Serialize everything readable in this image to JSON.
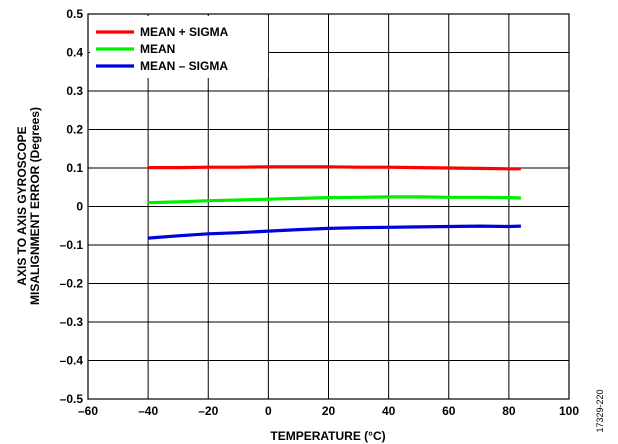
{
  "figure_id": "17329-220",
  "chart_data": {
    "type": "line",
    "xlabel": "TEMPERATURE (°C)",
    "ylabel_lines": [
      "AXIS TO AXIS GYROSCOPE",
      "MISALIGNMENT ERROR (Degrees)"
    ],
    "xlim": [
      -60,
      100
    ],
    "ylim": [
      -0.5,
      0.5
    ],
    "x_ticks": [
      -60,
      -40,
      -20,
      0,
      20,
      40,
      60,
      80,
      100
    ],
    "x_tick_labels": [
      "–60",
      "–40",
      "–20",
      "0",
      "20",
      "40",
      "60",
      "80",
      "100"
    ],
    "y_ticks": [
      -0.5,
      -0.4,
      -0.3,
      -0.2,
      -0.1,
      0,
      0.1,
      0.2,
      0.3,
      0.4,
      0.5
    ],
    "y_tick_labels": [
      "–0.5",
      "–0.4",
      "–0.3",
      "–0.2",
      "–0.1",
      "0",
      "0.1",
      "0.2",
      "0.3",
      "0.4",
      "0.5"
    ],
    "grid": true,
    "legend_position": "top-left",
    "series": [
      {
        "name": "MEAN + SIGMA",
        "color": "#ff0000",
        "x": [
          -40,
          -30,
          -20,
          -10,
          0,
          10,
          20,
          30,
          40,
          50,
          60,
          70,
          80,
          84
        ],
        "y": [
          0.101,
          0.101,
          0.102,
          0.102,
          0.103,
          0.103,
          0.103,
          0.102,
          0.102,
          0.101,
          0.1,
          0.099,
          0.098,
          0.098
        ]
      },
      {
        "name": "MEAN",
        "color": "#00ee00",
        "x": [
          -40,
          -30,
          -20,
          -10,
          0,
          10,
          20,
          30,
          40,
          50,
          60,
          70,
          80,
          84
        ],
        "y": [
          0.01,
          0.012,
          0.015,
          0.017,
          0.019,
          0.021,
          0.023,
          0.024,
          0.025,
          0.025,
          0.024,
          0.024,
          0.023,
          0.022
        ]
      },
      {
        "name": "MEAN – SIGMA",
        "color": "#0000e0",
        "x": [
          -40,
          -30,
          -20,
          -10,
          0,
          10,
          20,
          30,
          40,
          50,
          60,
          70,
          80,
          84
        ],
        "y": [
          -0.082,
          -0.076,
          -0.071,
          -0.068,
          -0.064,
          -0.06,
          -0.057,
          -0.055,
          -0.054,
          -0.053,
          -0.052,
          -0.051,
          -0.052,
          -0.051
        ]
      }
    ]
  }
}
